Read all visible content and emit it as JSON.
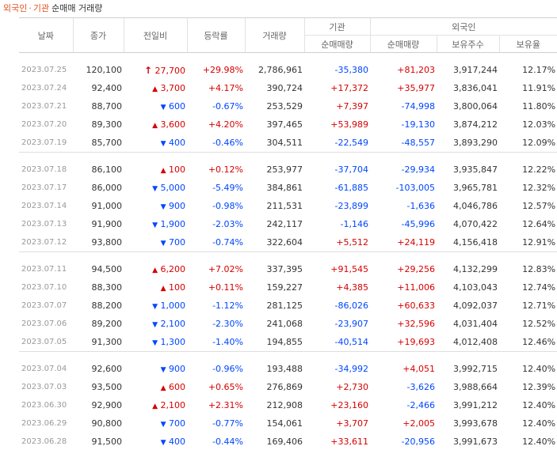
{
  "caption": {
    "foreign": "외국인",
    "sep": "·",
    "inst": "기관",
    "rest": "순매매 거래량"
  },
  "headers": {
    "date": "날짜",
    "close": "종가",
    "change": "전일비",
    "rate": "등락률",
    "volume": "거래량",
    "inst_group": "기관",
    "foreign_group": "외국인",
    "inst_net": "순매매량",
    "foreign_net": "순매매량",
    "holdings": "보유주수",
    "ratio": "보유율"
  },
  "colors": {
    "up": "#d60000",
    "down": "#0046ff",
    "accent": "#e2521d"
  },
  "groups": [
    [
      {
        "date": "2023.07.25",
        "close": "120,100",
        "dir": "limitup",
        "change": "27,700",
        "rate": "+29.98%",
        "volume": "2,786,961",
        "inst": "-35,380",
        "foreign": "+81,203",
        "holdings": "3,917,244",
        "ratio": "12.17%"
      },
      {
        "date": "2023.07.24",
        "close": "92,400",
        "dir": "up",
        "change": "3,700",
        "rate": "+4.17%",
        "volume": "390,724",
        "inst": "+17,372",
        "foreign": "+35,977",
        "holdings": "3,836,041",
        "ratio": "11.91%"
      },
      {
        "date": "2023.07.21",
        "close": "88,700",
        "dir": "down",
        "change": "600",
        "rate": "-0.67%",
        "volume": "253,529",
        "inst": "+7,397",
        "foreign": "-74,998",
        "holdings": "3,800,064",
        "ratio": "11.80%"
      },
      {
        "date": "2023.07.20",
        "close": "89,300",
        "dir": "up",
        "change": "3,600",
        "rate": "+4.20%",
        "volume": "397,465",
        "inst": "+53,989",
        "foreign": "-19,130",
        "holdings": "3,874,212",
        "ratio": "12.03%"
      },
      {
        "date": "2023.07.19",
        "close": "85,700",
        "dir": "down",
        "change": "400",
        "rate": "-0.46%",
        "volume": "304,511",
        "inst": "-22,549",
        "foreign": "-48,557",
        "holdings": "3,893,290",
        "ratio": "12.09%"
      }
    ],
    [
      {
        "date": "2023.07.18",
        "close": "86,100",
        "dir": "up",
        "change": "100",
        "rate": "+0.12%",
        "volume": "253,977",
        "inst": "-37,704",
        "foreign": "-29,934",
        "holdings": "3,935,847",
        "ratio": "12.22%"
      },
      {
        "date": "2023.07.17",
        "close": "86,000",
        "dir": "down",
        "change": "5,000",
        "rate": "-5.49%",
        "volume": "384,861",
        "inst": "-61,885",
        "foreign": "-103,005",
        "holdings": "3,965,781",
        "ratio": "12.32%"
      },
      {
        "date": "2023.07.14",
        "close": "91,000",
        "dir": "down",
        "change": "900",
        "rate": "-0.98%",
        "volume": "211,531",
        "inst": "-23,899",
        "foreign": "-1,636",
        "holdings": "4,046,786",
        "ratio": "12.57%"
      },
      {
        "date": "2023.07.13",
        "close": "91,900",
        "dir": "down",
        "change": "1,900",
        "rate": "-2.03%",
        "volume": "242,117",
        "inst": "-1,146",
        "foreign": "-45,996",
        "holdings": "4,070,422",
        "ratio": "12.64%"
      },
      {
        "date": "2023.07.12",
        "close": "93,800",
        "dir": "down",
        "change": "700",
        "rate": "-0.74%",
        "volume": "322,604",
        "inst": "+5,512",
        "foreign": "+24,119",
        "holdings": "4,156,418",
        "ratio": "12.91%"
      }
    ],
    [
      {
        "date": "2023.07.11",
        "close": "94,500",
        "dir": "up",
        "change": "6,200",
        "rate": "+7.02%",
        "volume": "337,395",
        "inst": "+91,545",
        "foreign": "+29,256",
        "holdings": "4,132,299",
        "ratio": "12.83%"
      },
      {
        "date": "2023.07.10",
        "close": "88,300",
        "dir": "up",
        "change": "100",
        "rate": "+0.11%",
        "volume": "159,227",
        "inst": "+4,385",
        "foreign": "+11,006",
        "holdings": "4,103,043",
        "ratio": "12.74%"
      },
      {
        "date": "2023.07.07",
        "close": "88,200",
        "dir": "down",
        "change": "1,000",
        "rate": "-1.12%",
        "volume": "281,125",
        "inst": "-86,026",
        "foreign": "+60,633",
        "holdings": "4,092,037",
        "ratio": "12.71%"
      },
      {
        "date": "2023.07.06",
        "close": "89,200",
        "dir": "down",
        "change": "2,100",
        "rate": "-2.30%",
        "volume": "241,068",
        "inst": "-23,907",
        "foreign": "+32,596",
        "holdings": "4,031,404",
        "ratio": "12.52%"
      },
      {
        "date": "2023.07.05",
        "close": "91,300",
        "dir": "down",
        "change": "1,300",
        "rate": "-1.40%",
        "volume": "194,855",
        "inst": "-40,514",
        "foreign": "+19,693",
        "holdings": "4,012,408",
        "ratio": "12.46%"
      }
    ],
    [
      {
        "date": "2023.07.04",
        "close": "92,600",
        "dir": "down",
        "change": "900",
        "rate": "-0.96%",
        "volume": "193,488",
        "inst": "-34,992",
        "foreign": "+4,051",
        "holdings": "3,992,715",
        "ratio": "12.40%"
      },
      {
        "date": "2023.07.03",
        "close": "93,500",
        "dir": "up",
        "change": "600",
        "rate": "+0.65%",
        "volume": "276,869",
        "inst": "+2,730",
        "foreign": "-3,626",
        "holdings": "3,988,664",
        "ratio": "12.39%"
      },
      {
        "date": "2023.06.30",
        "close": "92,900",
        "dir": "up",
        "change": "2,100",
        "rate": "+2.31%",
        "volume": "212,908",
        "inst": "+23,160",
        "foreign": "-2,466",
        "holdings": "3,991,212",
        "ratio": "12.40%"
      },
      {
        "date": "2023.06.29",
        "close": "90,800",
        "dir": "down",
        "change": "700",
        "rate": "-0.77%",
        "volume": "154,061",
        "inst": "+3,707",
        "foreign": "+2,005",
        "holdings": "3,993,678",
        "ratio": "12.40%"
      },
      {
        "date": "2023.06.28",
        "close": "91,500",
        "dir": "down",
        "change": "400",
        "rate": "-0.44%",
        "volume": "169,406",
        "inst": "+33,611",
        "foreign": "-20,956",
        "holdings": "3,991,673",
        "ratio": "12.40%"
      }
    ]
  ]
}
